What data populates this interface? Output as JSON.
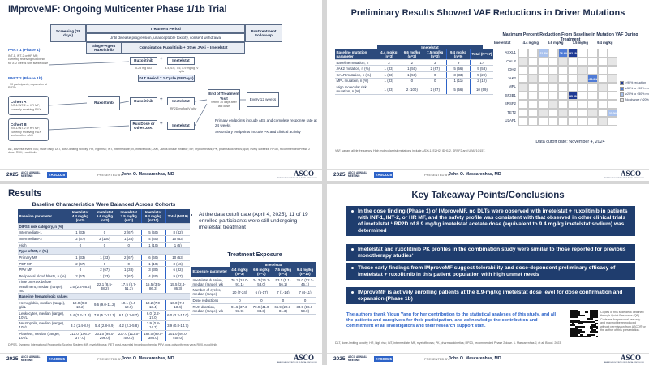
{
  "footer": {
    "year": "2025",
    "meeting": "ASCO ANNUAL MEETING",
    "hashtag": "#ASCO25",
    "presented_by": "PRESENTED BY:",
    "presenter": "John O. Mascarenhas, MD",
    "logo": "ASCO",
    "logo_sub": "AMERICAN SOCIETY OF CLINICAL ONCOLOGY"
  },
  "slide1": {
    "title": "IMproveMF: Ongoing Multicenter Phase 1/1b Trial",
    "screening": "Screening (28 days)",
    "treatment_period": "Treatment Period",
    "treatment_sub": "Until disease progression, unacceptable toxicity, consent withdrawal",
    "followup": "Posttreatment Follow-up",
    "single_agent": "Single-Agent Ruxolitinib",
    "combination": "Combination Ruxolitinib + Other JAKi + Imetelstat",
    "part1": "PART 1 (Phase 1)",
    "part1_text": "INT-1, INT-2 or HR MF; currently receiving ruxolitinib for ≥12 weeks with stable dose",
    "part2": "PART 2 (Phase 1b)",
    "part2_text": "~30 participants; expansion at RP2D",
    "cohort_a": "Cohort A",
    "cohort_a_text": "INT-1/INT-2 or HR MF; currently receiving RUX",
    "cohort_b": "Cohort B",
    "cohort_b_text": "INT-1/INT-2 or HR MF; currently receiving RUX and/or other JAKi",
    "rux": "Ruxolitinib",
    "ime": "Imetelstat",
    "plus": "+",
    "rux_dose": "5-25 mg BID",
    "ime_dose": "4.4, 6.6, 7.5, 8.9 mg/kg IV q4w",
    "dlt": "DLT Period = 1 Cycle (28 Days)",
    "rp2d": "RP2D mg/kg IV q4w",
    "other": "Rux Dose or Other JAKi",
    "eot": "End of Treatment Visit",
    "eot_sub": "Within 30 days after last dose",
    "fu_sub": "Every 12 weeks",
    "bullets": [
      "Primary endpoints include AEs and complete response rate at 24 weeks",
      "Secondary endpoints include PK and clinical activity"
    ],
    "footnote": "AE, adverse event; BID, twice daily; DLT, dose-limiting toxicity; HR, high risk; INT, intermediate; IV, intravenous; JAKi, Janus kinase inhibitor; MF, myelofibrosis; PK, pharmacokinetics; q4w, every 4 weeks; RP2D, recommended Phase 2 dose; RUX, ruxolitinib."
  },
  "slide2": {
    "title": "Preliminary Results Showed VAF Reductions in Driver Mutations",
    "table_group": "Imetelstat",
    "table": {
      "header": [
        "Baseline mutation parameter",
        "4.4 mg/kg (n=3)",
        "6.6 mg/kg (n=2)",
        "7.5 mg/kg (n=3)",
        "9.4 mg/kg (n=9)",
        "Total (N=17)"
      ],
      "rows": [
        [
          "Baseline mutation, n",
          "3",
          "2",
          "3",
          "9",
          "17"
        ],
        [
          "JAK2 mutation, n (%)",
          "1 (33)",
          "1 (50)",
          "2 (67)",
          "5 (56)",
          "9 (53)"
        ],
        [
          "CALR mutation, n (%)",
          "1 (33)",
          "1 (50)",
          "0",
          "3 (33)",
          "5 (29)"
        ],
        [
          "MPL mutation, n (%)",
          "1 (33)",
          "0",
          "0",
          "1 (11)",
          "2 (12)"
        ],
        [
          "High molecular risk mutation, n (%)",
          "1 (33)",
          "2 (100)",
          "2 (67)",
          "5 (56)",
          "10 (59)"
        ]
      ]
    },
    "heatmap_title": "Maximum Percent Reduction From Baseline in Mutation VAF During Treatment",
    "heatmap_row_label": "Imetelstat",
    "cohorts": [
      "4.4 mg/kg",
      "6.6 mg/kg",
      "7.5 mg/kg",
      "9.4 mg/kg"
    ],
    "genes": [
      "ASXL1",
      "CALR",
      "IDH2",
      "JAK2",
      "MPL",
      "SF3B1",
      "SRSF2",
      "TET2",
      "U2AF1"
    ],
    "cells": [
      [
        null,
        null,
        {
          "label": "-21.3%",
          "color": "#a9c2ee"
        },
        null,
        {
          "label": "-76.4%",
          "color": "#4f7bd6"
        },
        {
          "label": "-92.1%",
          "color": "#1f3a93"
        },
        null,
        null,
        null,
        null
      ],
      [
        {
          "label": "",
          "color": "#e6e6e6"
        },
        null,
        null,
        null,
        {
          "label": "",
          "color": "#e6e6e6"
        },
        null,
        null,
        null,
        null,
        {
          "label": "",
          "color": "#e6e6e6"
        }
      ],
      [
        null,
        null,
        null,
        null,
        null,
        null,
        {
          "label": "",
          "color": "#e6e6e6"
        },
        null,
        null,
        null
      ],
      [
        null,
        {
          "label": "",
          "color": "#e6e6e6"
        },
        null,
        {
          "label": "",
          "color": "#e6e6e6"
        },
        null,
        null,
        {
          "label": "",
          "color": "#e6e6e6"
        },
        {
          "label": "-58.6%",
          "color": "#4f7bd6"
        },
        null,
        {
          "label": "",
          "color": "#e6e6e6"
        }
      ],
      [
        {
          "label": "",
          "color": "#e6e6e6"
        },
        null,
        null,
        null,
        null,
        null,
        null,
        null,
        {
          "label": "",
          "color": "#e6e6e6"
        },
        null
      ],
      [
        null,
        null,
        null,
        null,
        null,
        {
          "label": "-95.8%",
          "color": "#1f3a93"
        },
        null,
        null,
        null,
        null
      ],
      [
        null,
        null,
        null,
        {
          "label": "",
          "color": "#e6e6e6"
        },
        null,
        null,
        null,
        null,
        null,
        null
      ],
      [
        null,
        null,
        {
          "label": "",
          "color": "#e6e6e6"
        },
        null,
        {
          "label": "",
          "color": "#e6e6e6"
        },
        null,
        null,
        {
          "label": "",
          "color": "#e6e6e6"
        },
        null,
        {
          "label": "-33.0%",
          "color": "#a9c2ee"
        }
      ],
      [
        null,
        null,
        null,
        null,
        null,
        null,
        null,
        null,
        {
          "label": "",
          "color": "#e6e6e6"
        },
        null
      ]
    ],
    "legend": [
      {
        "label": ">90% reduction",
        "color": "#1f3a93"
      },
      {
        "label": "≥50% to <90% reduction",
        "color": "#4f7bd6"
      },
      {
        "label": "≥20% to <50% reduction",
        "color": "#a9c2ee"
      },
      {
        "label": "No change (<20% reduction)",
        "color": "#e6e6e6"
      }
    ],
    "cutoff": "Data cutoff date: November 4, 2024",
    "footnote": "VAF, variant allele frequency. High molecular risk mutations include ASXL1, EZH2, IDH1/2, SRSF2 and U2AF1Q157."
  },
  "slide3": {
    "title": "Results",
    "table_title": "Baseline Characteristics Were Balanced Across Cohorts",
    "table": {
      "header": [
        "Baseline parameter",
        "Imetelstat 4.4 mg/kg (n=3)",
        "Imetelstat 6.6 mg/kg (n=3)",
        "Imetelstat 7.5 mg/kg (n=3)",
        "Imetelstat 9.4 mg/kg (n=10)",
        "Total (N=19)"
      ],
      "rows": [
        [
          "DIPSS risk category, n (%)"
        ],
        [
          "Intermediate-1",
          "1 (33)",
          "0",
          "2 (67)",
          "5 (50)",
          "8 (42)"
        ],
        [
          "Intermediate-2",
          "2 (67)",
          "3 (100)",
          "1 (33)",
          "4 (40)",
          "10 (53)"
        ],
        [
          "High",
          "0",
          "0",
          "0",
          "1 (10)",
          "1 (5)"
        ],
        [
          "Type of MF, n (%)"
        ],
        [
          "Primary MF",
          "1 (33)",
          "1 (33)",
          "2 (67)",
          "6 (60)",
          "10 (53)"
        ],
        [
          "PET MF",
          "2 (67)",
          "0",
          "0",
          "1 (10)",
          "3 (16)"
        ],
        [
          "PPV MF",
          "0",
          "2 (67)",
          "1 (33)",
          "3 (30)",
          "6 (32)"
        ],
        [
          "Peripheral blood blasts, n (%)",
          "2 (67)",
          "1 (33)",
          "2 (67)",
          "4 (40)",
          "9 (47)"
        ],
        [
          "Time on RUX before enrollment, median (range), mo",
          "3.5 (2.4-86.2)",
          "22.1 (8.5-38.2)",
          "17.5 (8.7-51.3)",
          "15.5 (3.5-86.3)",
          "15.5 (2.4-86.3)"
        ],
        [
          "Baseline hematologic values"
        ],
        [
          "Hemoglobin, median (range), g/dL",
          "10.0 (9.3-10.2)",
          "9.6 (9.0-11.2)",
          "10.1 (9.4-10.9)",
          "10.2 (7.0-13.4)",
          "10.0 (7.0-13.4)"
        ],
        [
          "Leukocytes, median (range), 10⁹/L",
          "5.4 (2.2-11.3)",
          "7.8 (5.7-12.1)",
          "6.1 (4.2-8.7)",
          "6.0 (2.2-17.0)",
          "6.0 (2.2-17.0)"
        ],
        [
          "Neutrophils, median (range), 10⁹/L",
          "3.1 (1.4-8.9)",
          "5.4 (2.8-8.9)",
          "4.2 (2.2-5.8)",
          "3.9 (0.8-14.7)",
          "3.9 (0.8-14.7)"
        ],
        [
          "Platelets, median (range), 10⁹/L",
          "211.0 (106.0-377.0)",
          "201.0 (94.0-298.0)",
          "237.0 (113.0-450.0)",
          "182.0 (99.0-386.0)",
          "201.0 (94.0-450.0)"
        ]
      ]
    },
    "bullet": "At the data cutoff date (April 4, 2025), 11 of 19 enrolled participants were still undergoing imetelstat treatment",
    "exposure_title": "Treatment Exposure",
    "exposure_group": "Imetelstat",
    "exposure": {
      "header": [
        "Exposure parameter",
        "4.4 mg/kg (n=3)",
        "6.6 mg/kg (n=3)",
        "7.5 mg/kg (n=3)",
        "9.4 mg/kg (n=10)"
      ],
      "rows": [
        [
          "Imetelstat duration, median (range), wk",
          "76.1 (24.0-91.1)",
          "24.3 (16.1-53.0)",
          "53.1 (5.1-56.1)",
          "25.0 (12.1-45.1)"
        ],
        [
          "Number of cycles, median (range)",
          "20 (7-24)",
          "6 (5-17)",
          "7 (1-14)",
          "7 (4-11)"
        ],
        [
          "Dose reductions",
          "0",
          "0",
          "0",
          "0"
        ],
        [
          "RUX duration, median (range), wk",
          "91.6 (37.3-93.9)",
          "70.9 (41.0-84.3)",
          "66.9 (22.3-81.3)",
          "33.9 (16.6-59.0)"
        ]
      ]
    },
    "footnote": "DIPSS, Dynamic International Prognostic Scoring System; MF, myelofibrosis; PET, post-essential thrombocythemia; PPV, post-polycythemia vera; RUX, ruxolitinib."
  },
  "slide4": {
    "title": "Key Takeaway Points/Conclusions",
    "points": [
      "In the dose finding (Phase 1) of IMproveMF, no DLTs were observed with imetelstat + ruxolitinib in patients with INT-1, INT-2, or HR MF, and the safety profile was consistent with that observed in other clinical trials of imetelstat.¹ RP2D of 8.9 mg/kg imetelstat acetate dose (equivalent to 9.4 mg/kg imetelstat sodium) was determined",
      "Imetelstat and ruxolitinib PK profiles in the combination study were similar to those reported for previous monotherapy studies¹",
      "These early findings from IMproveMF suggest tolerability and dose-dependent preliminary efficacy of imetelstat + ruxolitinib in this patient population with high unmet needs",
      "IMproveMF is actively enrolling patients at the 8.9-mg/kg imetelstat dose level for dose confirmation and expansion (Phase 1b)"
    ],
    "acknowledgement": "The authors thank Yiqun Yang for her contribution to the statistical analyses of this study, and all the patients and caregivers for their participation, and acknowledge the contribution and commitment of all investigators and their research support staff.",
    "qr_caption": "Copies of this slide deck obtained through Quick Response (QR) Code are for personal use only and may not be reproduced without permission from ASCO® or the author of this presentation.",
    "footnote": "DLT, dose-limiting toxicity; HR, high risk; INT, intermediate; MF, myelofibrosis; PK, pharmacokinetics; RP2D, recommended Phase 2 dose. 1. Mascarenhas J, et al. Blood. 2023."
  }
}
